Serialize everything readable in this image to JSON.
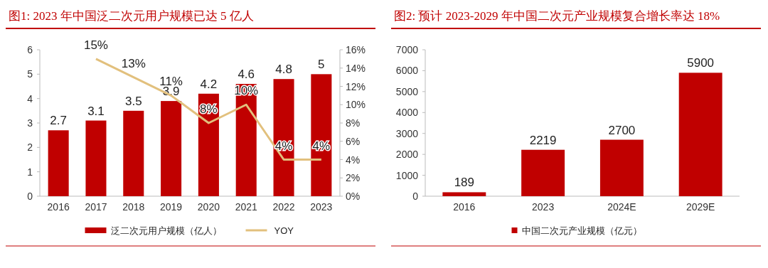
{
  "chart_data": [
    {
      "type": "bar",
      "title": "图1:  2023 年中国泛二次元用户规模已达 5 亿人",
      "categories": [
        "2016",
        "2017",
        "2018",
        "2019",
        "2020",
        "2021",
        "2022",
        "2023"
      ],
      "series": [
        {
          "name": "泛二次元用户规模（亿人）",
          "color": "#c00000",
          "values": [
            2.7,
            3.1,
            3.5,
            3.9,
            4.2,
            4.6,
            4.8,
            5
          ]
        },
        {
          "name": "YOY",
          "type": "line",
          "axis": "y2",
          "color": "#e2c07d",
          "values": [
            null,
            15,
            13,
            11,
            8,
            10,
            4,
            4
          ],
          "value_labels": [
            null,
            "15%",
            "13%",
            "11%",
            "8%",
            "10%",
            "4%",
            "4%"
          ]
        }
      ],
      "ylim": [
        0,
        6
      ],
      "yticks": [
        0,
        1,
        2,
        3,
        4,
        5,
        6
      ],
      "y2lim": [
        0,
        16
      ],
      "y2ticks": [
        {
          "value": 0,
          "label": "0%"
        },
        {
          "value": 2,
          "label": "2%"
        },
        {
          "value": 4,
          "label": "4%"
        },
        {
          "value": 6,
          "label": "6%"
        },
        {
          "value": 8,
          "label": "8%"
        },
        {
          "value": 10,
          "label": "10%"
        },
        {
          "value": 12,
          "label": "12%"
        },
        {
          "value": 14,
          "label": "14%"
        },
        {
          "value": 16,
          "label": "16%"
        }
      ],
      "data_labels": true,
      "legend": "bottom"
    },
    {
      "type": "bar",
      "title": "图2:  预计 2023-2029 年中国二次元产业规模复合增长率达 18%",
      "categories": [
        "2016",
        "2023",
        "2024E",
        "2029E"
      ],
      "series": [
        {
          "name": "中国二次元产业规模（亿元）",
          "color": "#c00000",
          "values": [
            189,
            2219,
            2700,
            5900
          ]
        }
      ],
      "ylim": [
        0,
        7000
      ],
      "yticks": [
        0,
        1000,
        2000,
        3000,
        4000,
        5000,
        6000,
        7000
      ],
      "data_labels": true,
      "legend": "bottom"
    }
  ]
}
